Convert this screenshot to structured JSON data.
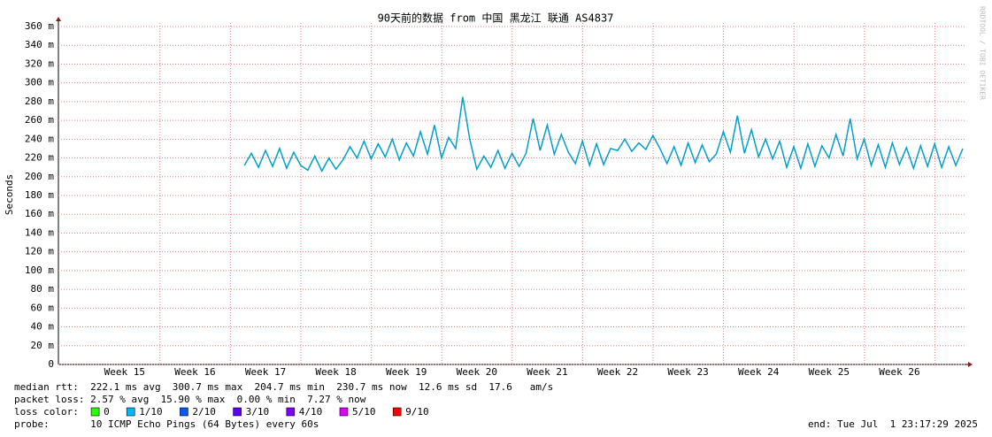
{
  "chart_data": {
    "type": "line",
    "title": "90天前的数据 from 中国 黑龙江 联通 AS4837",
    "y_label": "Seconds",
    "side_note": "RRDTOOL / TOBI OETIKER",
    "xlim": [
      14.06,
      26.95
    ],
    "xticks": [
      {
        "value": 15,
        "label": "Week 15"
      },
      {
        "value": 16,
        "label": "Week 16"
      },
      {
        "value": 17,
        "label": "Week 17"
      },
      {
        "value": 18,
        "label": "Week 18"
      },
      {
        "value": 19,
        "label": "Week 19"
      },
      {
        "value": 20,
        "label": "Week 20"
      },
      {
        "value": 21,
        "label": "Week 21"
      },
      {
        "value": 22,
        "label": "Week 22"
      },
      {
        "value": 23,
        "label": "Week 23"
      },
      {
        "value": 24,
        "label": "Week 24"
      },
      {
        "value": 25,
        "label": "Week 25"
      },
      {
        "value": 26,
        "label": "Week 26"
      }
    ],
    "ylim": [
      0,
      360
    ],
    "yticks": [
      0,
      {
        "value": 20,
        "label": "20 m"
      },
      {
        "value": 40,
        "label": "40 m"
      },
      {
        "value": 60,
        "label": "60 m"
      },
      {
        "value": 80,
        "label": "80 m"
      },
      {
        "value": 100,
        "label": "100 m"
      },
      {
        "value": 120,
        "label": "120 m"
      },
      {
        "value": 140,
        "label": "140 m"
      },
      {
        "value": 160,
        "label": "160 m"
      },
      {
        "value": 180,
        "label": "180 m"
      },
      {
        "value": 200,
        "label": "200 m"
      },
      {
        "value": 220,
        "label": "220 m"
      },
      {
        "value": 240,
        "label": "240 m"
      },
      {
        "value": 260,
        "label": "260 m"
      },
      {
        "value": 280,
        "label": "280 m"
      },
      {
        "value": 300,
        "label": "300 m"
      },
      {
        "value": 320,
        "label": "320 m"
      },
      {
        "value": 340,
        "label": "340 m"
      },
      {
        "value": 360,
        "label": "360 m"
      }
    ],
    "grid": true,
    "x": [
      16.7,
      16.8,
      16.9,
      17.0,
      17.1,
      17.2,
      17.3,
      17.4,
      17.5,
      17.6,
      17.7,
      17.8,
      17.9,
      18.0,
      18.1,
      18.2,
      18.3,
      18.4,
      18.5,
      18.6,
      18.7,
      18.8,
      18.9,
      19.0,
      19.1,
      19.2,
      19.3,
      19.4,
      19.5,
      19.6,
      19.7,
      19.8,
      19.9,
      20.0,
      20.1,
      20.2,
      20.3,
      20.4,
      20.5,
      20.6,
      20.7,
      20.8,
      20.9,
      21.0,
      21.1,
      21.2,
      21.3,
      21.4,
      21.5,
      21.6,
      21.7,
      21.8,
      21.9,
      22.0,
      22.1,
      22.2,
      22.3,
      22.4,
      22.5,
      22.6,
      22.7,
      22.8,
      22.9,
      23.0,
      23.1,
      23.2,
      23.3,
      23.4,
      23.5,
      23.6,
      23.7,
      23.8,
      23.9,
      24.0,
      24.1,
      24.2,
      24.3,
      24.4,
      24.5,
      24.6,
      24.7,
      24.8,
      24.9,
      25.0,
      25.1,
      25.2,
      25.3,
      25.4,
      25.5,
      25.6,
      25.7,
      25.8,
      25.9,
      26.0,
      26.1,
      26.2,
      26.3,
      26.4,
      26.5,
      26.6,
      26.7,
      26.8,
      26.9
    ],
    "series": [
      {
        "name": "median rtt",
        "color": "#00a0c8",
        "values": [
          212,
          225,
          210,
          228,
          211,
          230,
          209,
          226,
          212,
          207,
          222,
          206,
          220,
          208,
          218,
          232,
          220,
          238,
          219,
          235,
          221,
          240,
          218,
          236,
          222,
          248,
          224,
          255,
          220,
          242,
          230,
          285,
          240,
          208,
          222,
          210,
          228,
          209,
          225,
          211,
          225,
          262,
          228,
          255,
          224,
          245,
          226,
          214,
          238,
          212,
          235,
          213,
          230,
          228,
          240,
          227,
          236,
          229,
          244,
          230,
          214,
          232,
          212,
          236,
          215,
          234,
          216,
          224,
          248,
          226,
          265,
          225,
          250,
          221,
          240,
          219,
          238,
          210,
          232,
          209,
          235,
          211,
          233,
          220,
          245,
          222,
          262,
          219,
          240,
          212,
          234,
          210,
          236,
          213,
          231,
          209,
          233,
          211,
          235,
          210,
          232,
          212,
          230
        ]
      }
    ],
    "stats": [
      "median rtt:  222.1 ms avg  300.7 ms max  204.7 ms min  230.7 ms now  12.6 ms sd  17.6   am/s",
      "packet loss: 2.57 % avg  15.90 % max  0.00 % min  7.27 % now"
    ],
    "loss_color_label": "loss color:",
    "loss_colors": [
      {
        "label": "0",
        "color": "#26ff00"
      },
      {
        "label": "1/10",
        "color": "#00b8ff"
      },
      {
        "label": "2/10",
        "color": "#0059ff"
      },
      {
        "label": "3/10",
        "color": "#5e00ff"
      },
      {
        "label": "4/10",
        "color": "#7e00ff"
      },
      {
        "label": "5/10",
        "color": "#dd00ff"
      },
      {
        "label": "9/10",
        "color": "#ff0000"
      }
    ],
    "probe": "probe:       10 ICMP Echo Pings (64 Bytes) every 60s",
    "end": "end: Tue Jul  1 23:17:29 2025"
  }
}
